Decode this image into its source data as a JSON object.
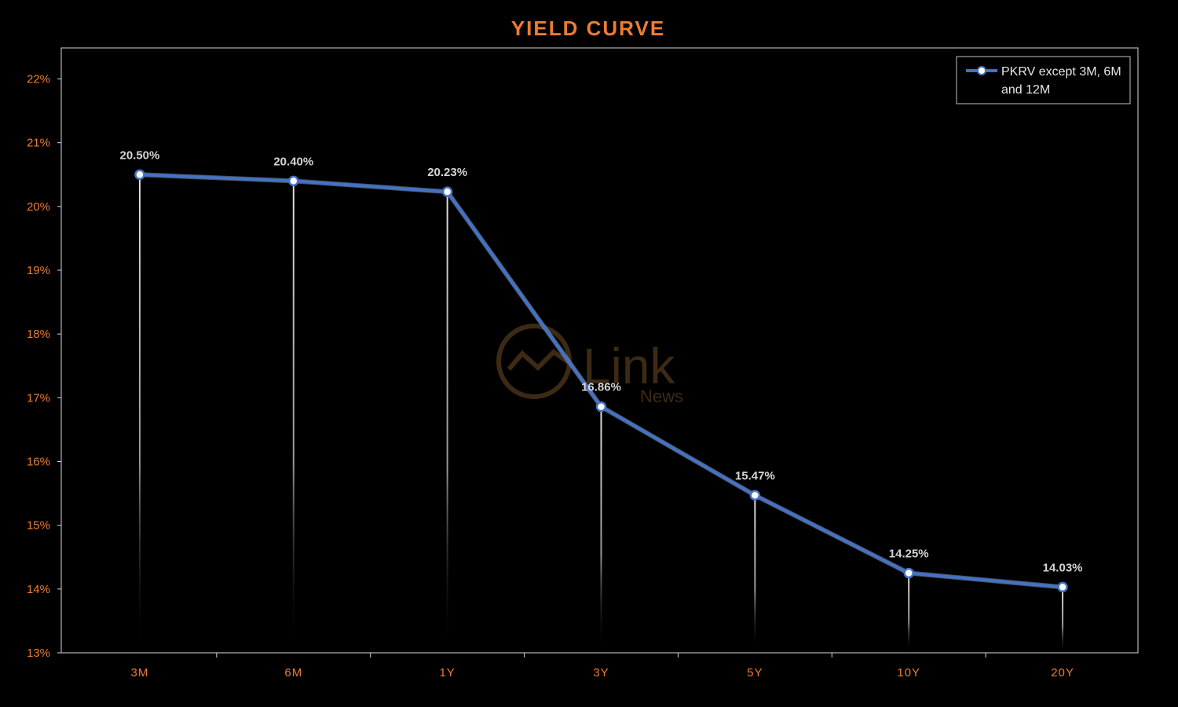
{
  "chart_data": {
    "type": "line",
    "title": "YIELD CURVE",
    "categories": [
      "3M",
      "6M",
      "1Y",
      "3Y",
      "5Y",
      "10Y",
      "20Y"
    ],
    "series": [
      {
        "name": "PKRV except 3M, 6M and 12M",
        "name_lines": [
          "PKRV except 3M, 6M",
          "and 12M"
        ],
        "values": [
          20.5,
          20.4,
          20.23,
          16.86,
          15.47,
          14.25,
          14.03
        ],
        "labels": [
          "20.50%",
          "20.40%",
          "20.23%",
          "16.86%",
          "15.47%",
          "14.25%",
          "14.03%"
        ]
      }
    ],
    "ylim": [
      13,
      22
    ],
    "yticks": [
      13,
      14,
      15,
      16,
      17,
      18,
      19,
      20,
      21,
      22
    ],
    "ytick_labels": [
      "13%",
      "14%",
      "15%",
      "16%",
      "17%",
      "18%",
      "19%",
      "20%",
      "21%",
      "22%"
    ],
    "xlabel": "",
    "ylabel": "",
    "grid": false,
    "drop_lines": true,
    "legend_position": "top-right"
  },
  "watermark": {
    "main": "Link",
    "sub": "News"
  },
  "colors": {
    "background": "#000000",
    "title": "#ed7d31",
    "tick_labels": "#ed7d31",
    "line": "#4472c4",
    "axis": "#d9d9d9",
    "marker_fill": "#ffffff",
    "watermark": "#3d2a14"
  }
}
